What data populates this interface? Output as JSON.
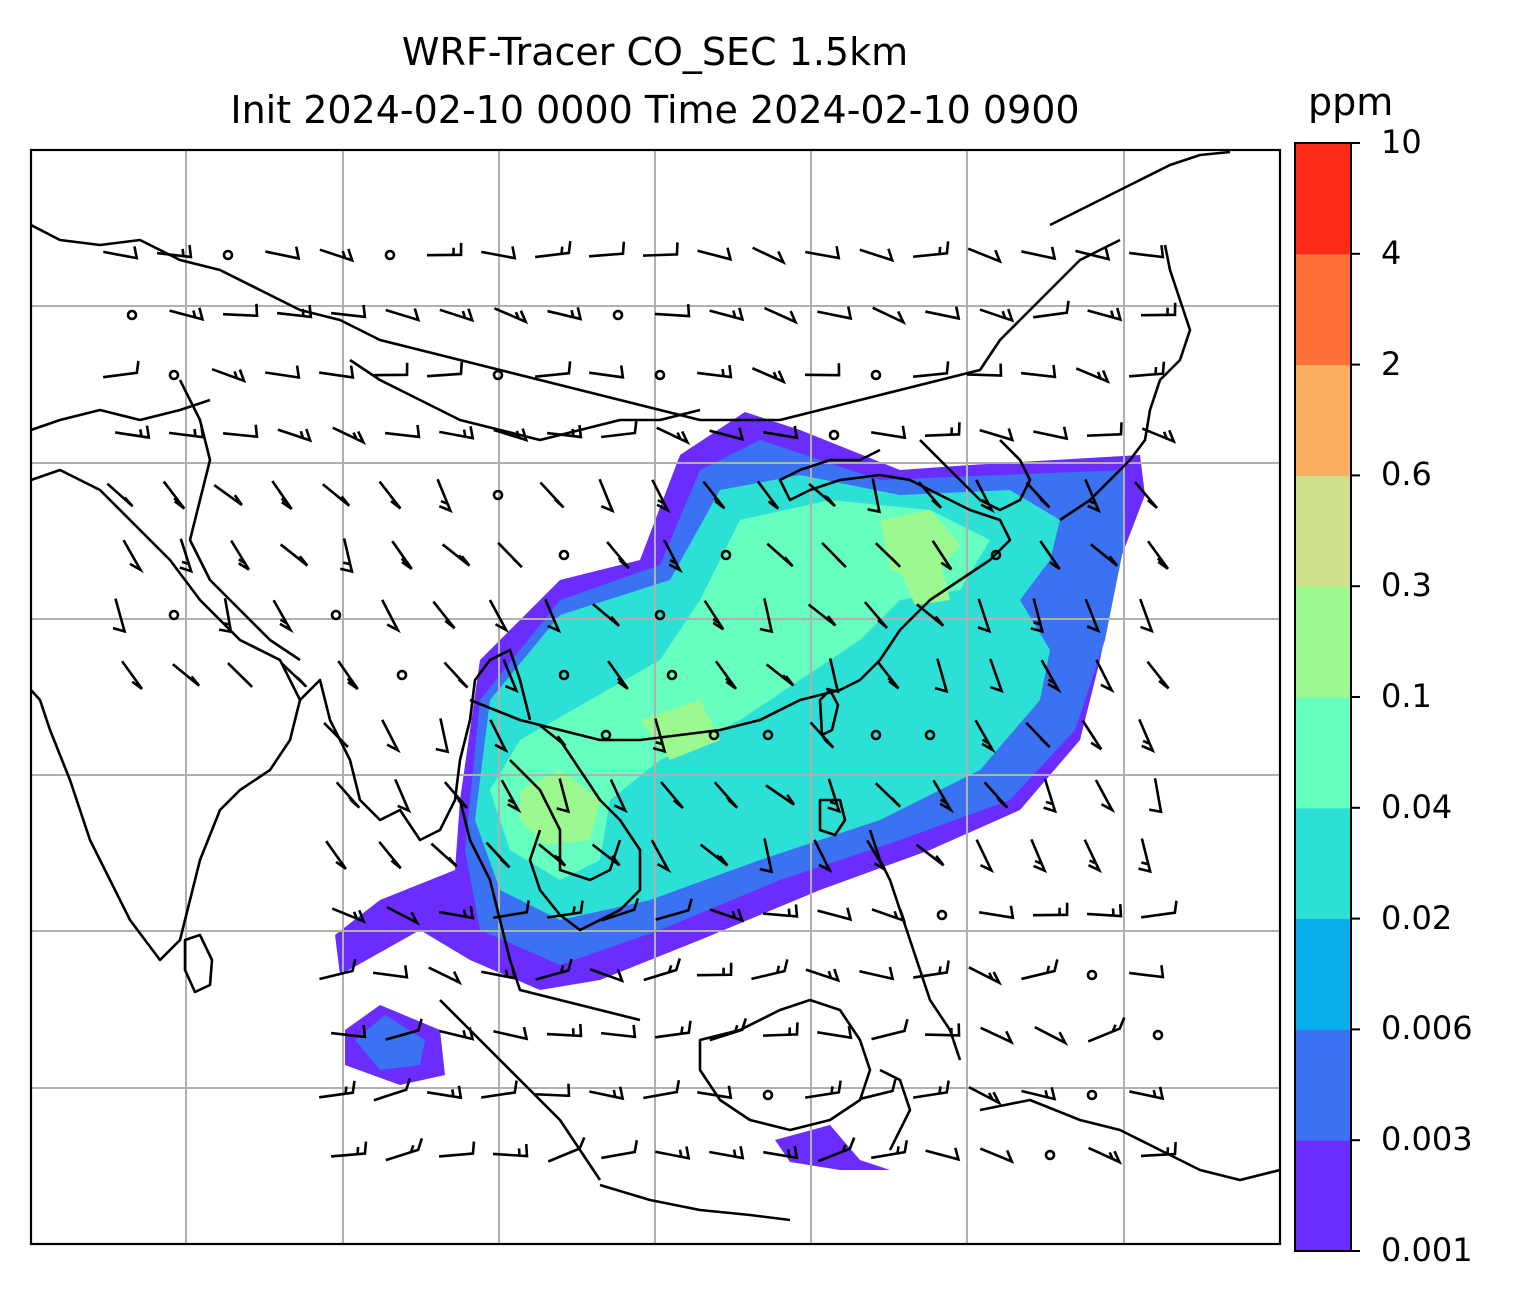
{
  "title": {
    "line1": "WRF-Tracer CO_SEC 1.5km",
    "line2": "Init 2024-02-10 0000 Time 2024-02-10 0900"
  },
  "colorbar": {
    "unit": "ppm",
    "ticks": [
      "0.001",
      "0.003",
      "0.006",
      "0.02",
      "0.04",
      "0.1",
      "0.3",
      "0.6",
      "2",
      "4",
      "10"
    ],
    "colors": [
      "#6a2cff",
      "#3a72f2",
      "#0aaeea",
      "#2de0d6",
      "#66ffc0",
      "#9cf98f",
      "#cfe08a",
      "#fcae60",
      "#ff7138",
      "#ff2a18"
    ]
  },
  "map": {
    "field": "CO_SEC tracer concentration",
    "overlay": "wind barbs",
    "gridlines": true,
    "coastlines": true
  }
}
